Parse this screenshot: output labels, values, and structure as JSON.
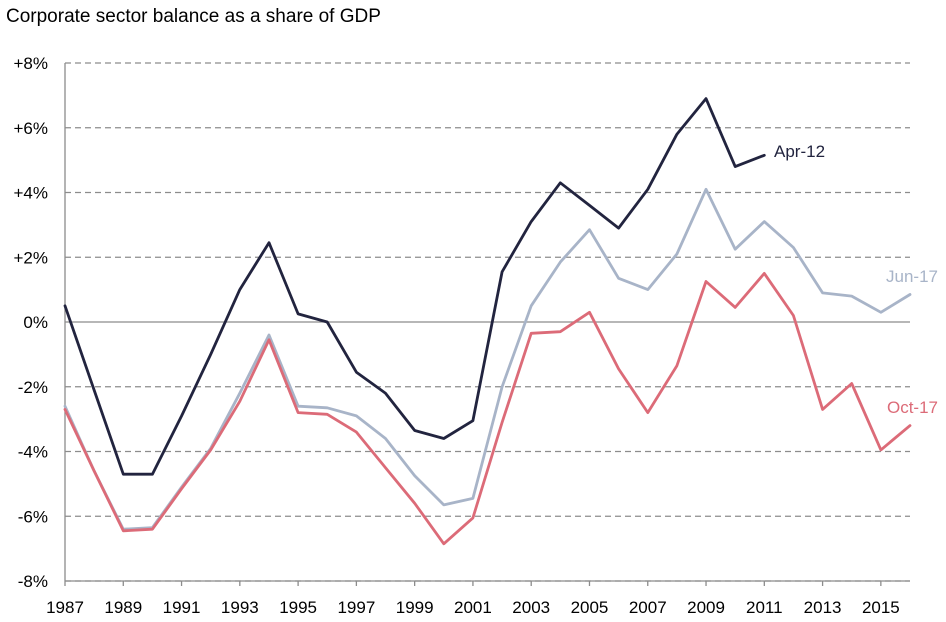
{
  "chart_data": {
    "type": "line",
    "title": "Corporate sector balance  as a share  of GDP",
    "xlabel": "",
    "ylabel": "",
    "ylim": [
      -8,
      8
    ],
    "xlim": [
      1987,
      2016
    ],
    "y_ticks": [
      -8,
      -6,
      -4,
      -2,
      0,
      2,
      4,
      6,
      8
    ],
    "y_tick_labels": [
      "-8%",
      "-6%",
      "-4%",
      "-2%",
      "0%",
      "+2%",
      "+4%",
      "+6%",
      "+8%"
    ],
    "x_ticks": [
      1987,
      1989,
      1991,
      1993,
      1995,
      1997,
      1999,
      2001,
      2003,
      2005,
      2007,
      2009,
      2011,
      2013,
      2015
    ],
    "x_tick_labels": [
      "1987",
      "1989",
      "1991",
      "1993",
      "1995",
      "1997",
      "1999",
      "2001",
      "2003",
      "2005",
      "2007",
      "2009",
      "2011",
      "2013",
      "2015"
    ],
    "grid": "horizontal dashed",
    "series": [
      {
        "name": "Apr-12",
        "color": "#22243f",
        "x": [
          1987,
          1988,
          1989,
          1990,
          1991,
          1992,
          1993,
          1994,
          1995,
          1996,
          1997,
          1998,
          1999,
          2000,
          2001,
          2002,
          2003,
          2004,
          2005,
          2006,
          2007,
          2008,
          2009,
          2010,
          2011
        ],
        "values": [
          0.5,
          -2.1,
          -4.7,
          -4.7,
          -2.9,
          -1.0,
          1.0,
          2.45,
          0.25,
          0.0,
          -1.55,
          -2.2,
          -3.35,
          -3.6,
          -3.05,
          1.55,
          3.1,
          4.3,
          3.6,
          2.9,
          4.1,
          5.8,
          6.9,
          4.8,
          5.15
        ]
      },
      {
        "name": "Jun-17",
        "color": "#a8b4c8",
        "x": [
          1987,
          1988,
          1989,
          1990,
          1991,
          1992,
          1993,
          1994,
          1995,
          1996,
          1997,
          1998,
          1999,
          2000,
          2001,
          2002,
          2003,
          2004,
          2005,
          2006,
          2007,
          2008,
          2009,
          2010,
          2011,
          2012,
          2013,
          2014,
          2015,
          2016
        ],
        "values": [
          -2.6,
          -4.6,
          -6.4,
          -6.35,
          -5.1,
          -3.9,
          -2.2,
          -0.4,
          -2.6,
          -2.65,
          -2.9,
          -3.6,
          -4.75,
          -5.65,
          -5.45,
          -2.0,
          0.5,
          1.85,
          2.85,
          1.35,
          1.0,
          2.1,
          4.1,
          2.25,
          3.1,
          2.3,
          0.9,
          0.8,
          0.3,
          0.85
        ]
      },
      {
        "name": "Oct-17",
        "color": "#dc6b78",
        "x": [
          1987,
          1988,
          1989,
          1990,
          1991,
          1992,
          1993,
          1994,
          1995,
          1996,
          1997,
          1998,
          1999,
          2000,
          2001,
          2002,
          2003,
          2004,
          2005,
          2006,
          2007,
          2008,
          2009,
          2010,
          2011,
          2012,
          2013,
          2014,
          2015,
          2016
        ],
        "values": [
          -2.7,
          -4.6,
          -6.45,
          -6.4,
          -5.15,
          -3.95,
          -2.45,
          -0.55,
          -2.8,
          -2.85,
          -3.4,
          -4.5,
          -5.6,
          -6.85,
          -6.05,
          -3.1,
          -0.35,
          -0.3,
          0.3,
          -1.45,
          -2.8,
          -1.35,
          1.25,
          0.45,
          1.5,
          0.2,
          -2.7,
          -1.9,
          -3.95,
          -3.2
        ]
      }
    ]
  }
}
